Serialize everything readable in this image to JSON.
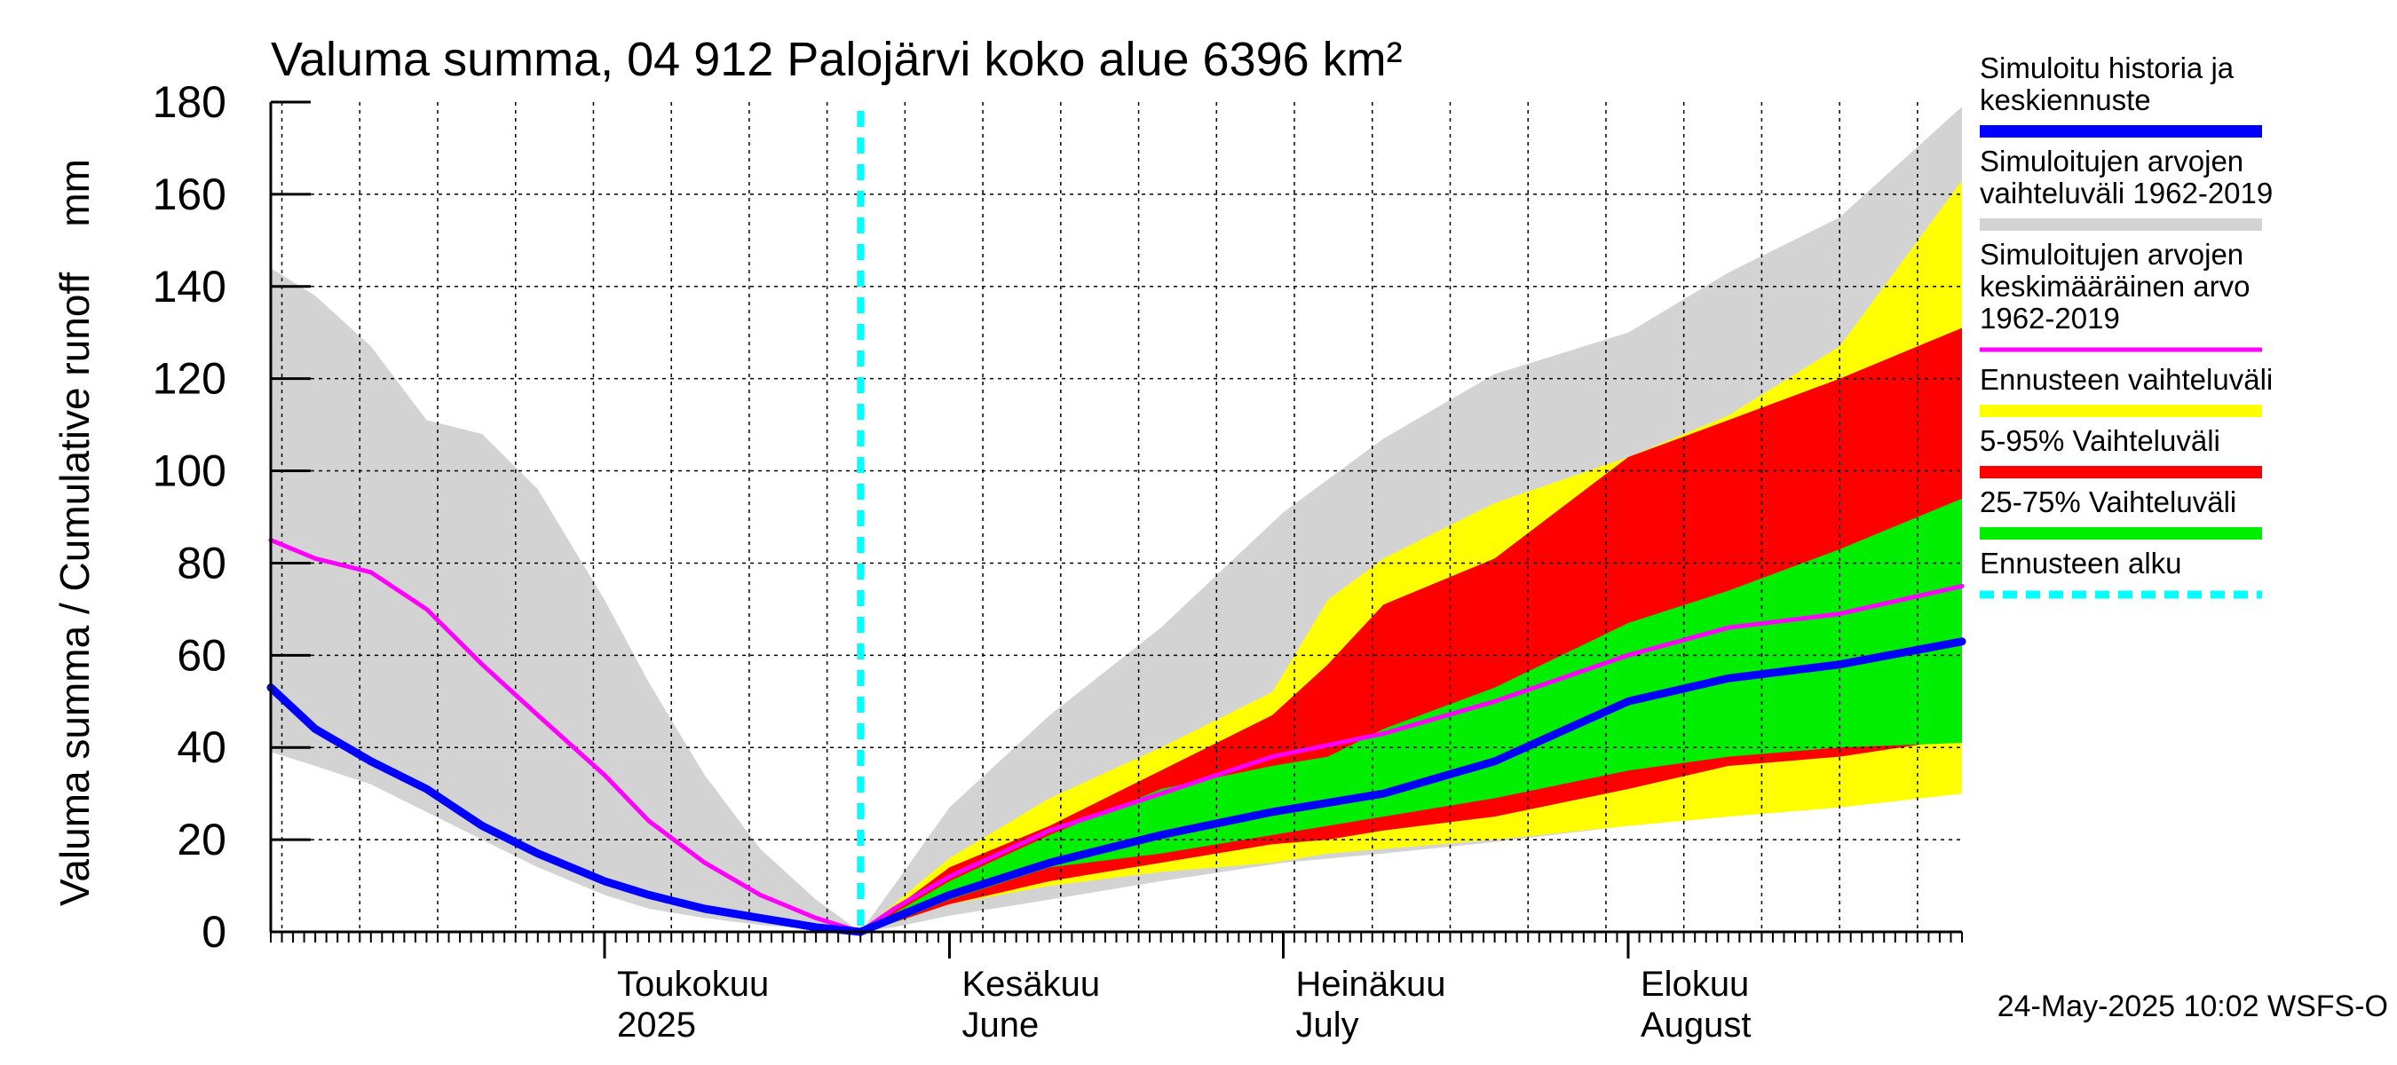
{
  "chart_data": {
    "type": "area",
    "title": "Valuma summa, 04 912 Palojärvi koko alue 6396 km²",
    "ylabel": "Valuma summa / Cumulative runoff    mm",
    "ylim": [
      0,
      180
    ],
    "yticks": [
      0,
      20,
      40,
      60,
      80,
      100,
      120,
      140,
      160,
      180
    ],
    "xlim": [
      "2025-04-01",
      "2025-08-31"
    ],
    "grid": true,
    "legend_position": "right",
    "x_month_labels": [
      {
        "line1": "Toukokuu",
        "line2": "2025",
        "date": "2025-05-01"
      },
      {
        "line1": "Kesäkuu",
        "line2": "June",
        "date": "2025-06-01"
      },
      {
        "line1": "Heinäkuu",
        "line2": "July",
        "date": "2025-07-01"
      },
      {
        "line1": "Elokuu",
        "line2": "August",
        "date": "2025-08-01"
      }
    ],
    "forecast_start": "2025-05-24",
    "footer": "24-May-2025 10:02 WSFS-O",
    "legend": [
      {
        "label": "Simuloitu historia ja\nkeskiennuste",
        "color": "#0000ff",
        "style": "thick"
      },
      {
        "label": "Simuloitujen arvojen\nvaihteluväli 1962-2019",
        "color": "#d3d3d3",
        "style": "thick"
      },
      {
        "label": "Simuloitujen arvojen\nkeskimääräinen arvo\n   1962-2019",
        "color": "#ff00ff",
        "style": "line"
      },
      {
        "label": "Ennusteen vaihteluväli",
        "color": "#ffff00",
        "style": "thick"
      },
      {
        "label": "5-95% Vaihteluväli",
        "color": "#ff0000",
        "style": "thick"
      },
      {
        "label": "25-75% Vaihteluväli",
        "color": "#00ee00",
        "style": "thick"
      },
      {
        "label": "Ennusteen alku",
        "color": "#00ffff",
        "style": "dashed"
      }
    ],
    "bands": [
      {
        "name": "Simuloitujen arvojen vaihteluväli 1962-2019",
        "color": "#d3d3d3",
        "points": [
          [
            "2025-04-01",
            39,
            144
          ],
          [
            "2025-04-05",
            36,
            138
          ],
          [
            "2025-04-10",
            32,
            127
          ],
          [
            "2025-04-15",
            26,
            111
          ],
          [
            "2025-04-20",
            20,
            108
          ],
          [
            "2025-04-25",
            14,
            96
          ],
          [
            "2025-05-01",
            8,
            72
          ],
          [
            "2025-05-05",
            5,
            54
          ],
          [
            "2025-05-10",
            3,
            34
          ],
          [
            "2025-05-15",
            1.5,
            18
          ],
          [
            "2025-05-20",
            0.5,
            7
          ],
          [
            "2025-05-24",
            0,
            0
          ],
          [
            "2025-05-27",
            1,
            10
          ],
          [
            "2025-06-01",
            3.5,
            27
          ],
          [
            "2025-06-10",
            7,
            47
          ],
          [
            "2025-06-20",
            11,
            66
          ],
          [
            "2025-07-01",
            15,
            91
          ],
          [
            "2025-07-10",
            17,
            107
          ],
          [
            "2025-07-20",
            19.5,
            121
          ],
          [
            "2025-08-01",
            23,
            130
          ],
          [
            "2025-08-10",
            27,
            143
          ],
          [
            "2025-08-20",
            30,
            155
          ],
          [
            "2025-08-31",
            34,
            179
          ]
        ]
      },
      {
        "name": "Ennusteen vaihteluväli",
        "color": "#ffff00",
        "points": [
          [
            "2025-05-24",
            0,
            0
          ],
          [
            "2025-05-27",
            2,
            6
          ],
          [
            "2025-06-01",
            6,
            16
          ],
          [
            "2025-06-10",
            10,
            29
          ],
          [
            "2025-06-20",
            13,
            40
          ],
          [
            "2025-06-30",
            15,
            52
          ],
          [
            "2025-07-05",
            17,
            72
          ],
          [
            "2025-07-10",
            18,
            81
          ],
          [
            "2025-07-20",
            20,
            93
          ],
          [
            "2025-08-01",
            23,
            103
          ],
          [
            "2025-08-10",
            25,
            112
          ],
          [
            "2025-08-20",
            27,
            127
          ],
          [
            "2025-08-31",
            30,
            163
          ]
        ]
      },
      {
        "name": "5-95% Vaihteluväli",
        "color": "#ff0000",
        "points": [
          [
            "2025-05-24",
            0,
            0
          ],
          [
            "2025-05-27",
            2,
            5
          ],
          [
            "2025-06-01",
            6,
            14
          ],
          [
            "2025-06-10",
            11,
            23
          ],
          [
            "2025-06-20",
            15,
            35
          ],
          [
            "2025-06-30",
            19,
            47
          ],
          [
            "2025-07-05",
            20,
            58
          ],
          [
            "2025-07-10",
            22,
            71
          ],
          [
            "2025-07-20",
            25,
            81
          ],
          [
            "2025-08-01",
            31,
            103
          ],
          [
            "2025-08-10",
            36,
            111
          ],
          [
            "2025-08-20",
            38,
            120
          ],
          [
            "2025-08-31",
            42,
            131
          ]
        ]
      },
      {
        "name": "25-75% Vaihteluväli",
        "color": "#00ee00",
        "points": [
          [
            "2025-05-24",
            0,
            0
          ],
          [
            "2025-05-27",
            2,
            4
          ],
          [
            "2025-06-01",
            7,
            11
          ],
          [
            "2025-06-10",
            14,
            21
          ],
          [
            "2025-06-20",
            17,
            31
          ],
          [
            "2025-06-30",
            21,
            36
          ],
          [
            "2025-07-05",
            23,
            38
          ],
          [
            "2025-07-10",
            25,
            44
          ],
          [
            "2025-07-20",
            29,
            53
          ],
          [
            "2025-08-01",
            35,
            67
          ],
          [
            "2025-08-10",
            38,
            74
          ],
          [
            "2025-08-20",
            40,
            83
          ],
          [
            "2025-08-31",
            41,
            94
          ]
        ]
      }
    ],
    "series": [
      {
        "name": "Simuloitujen arvojen keskimääräinen arvo 1962-2019",
        "color": "#ff00ff",
        "points": [
          [
            "2025-04-01",
            85
          ],
          [
            "2025-04-05",
            81
          ],
          [
            "2025-04-10",
            78
          ],
          [
            "2025-04-15",
            70
          ],
          [
            "2025-04-20",
            58
          ],
          [
            "2025-04-25",
            47
          ],
          [
            "2025-05-01",
            34
          ],
          [
            "2025-05-05",
            24
          ],
          [
            "2025-05-10",
            15
          ],
          [
            "2025-05-15",
            8
          ],
          [
            "2025-05-20",
            3
          ],
          [
            "2025-05-24",
            0
          ],
          [
            "2025-05-27",
            5
          ],
          [
            "2025-06-01",
            12
          ],
          [
            "2025-06-10",
            22
          ],
          [
            "2025-06-20",
            30
          ],
          [
            "2025-06-30",
            38
          ],
          [
            "2025-07-10",
            43
          ],
          [
            "2025-07-20",
            50
          ],
          [
            "2025-08-01",
            60
          ],
          [
            "2025-08-10",
            66
          ],
          [
            "2025-08-20",
            69
          ],
          [
            "2025-08-31",
            75
          ]
        ]
      },
      {
        "name": "Simuloitu historia ja keskiennuste",
        "color": "#0000ff",
        "points": [
          [
            "2025-04-01",
            53
          ],
          [
            "2025-04-05",
            44
          ],
          [
            "2025-04-10",
            37
          ],
          [
            "2025-04-15",
            31
          ],
          [
            "2025-04-20",
            23
          ],
          [
            "2025-04-25",
            17
          ],
          [
            "2025-05-01",
            11
          ],
          [
            "2025-05-05",
            8
          ],
          [
            "2025-05-10",
            5
          ],
          [
            "2025-05-15",
            3
          ],
          [
            "2025-05-20",
            1
          ],
          [
            "2025-05-24",
            0
          ],
          [
            "2025-05-27",
            3
          ],
          [
            "2025-06-01",
            8
          ],
          [
            "2025-06-10",
            15
          ],
          [
            "2025-06-20",
            21
          ],
          [
            "2025-06-30",
            26
          ],
          [
            "2025-07-10",
            30
          ],
          [
            "2025-07-20",
            37
          ],
          [
            "2025-08-01",
            50
          ],
          [
            "2025-08-10",
            55
          ],
          [
            "2025-08-20",
            58
          ],
          [
            "2025-08-31",
            63
          ]
        ]
      }
    ]
  }
}
